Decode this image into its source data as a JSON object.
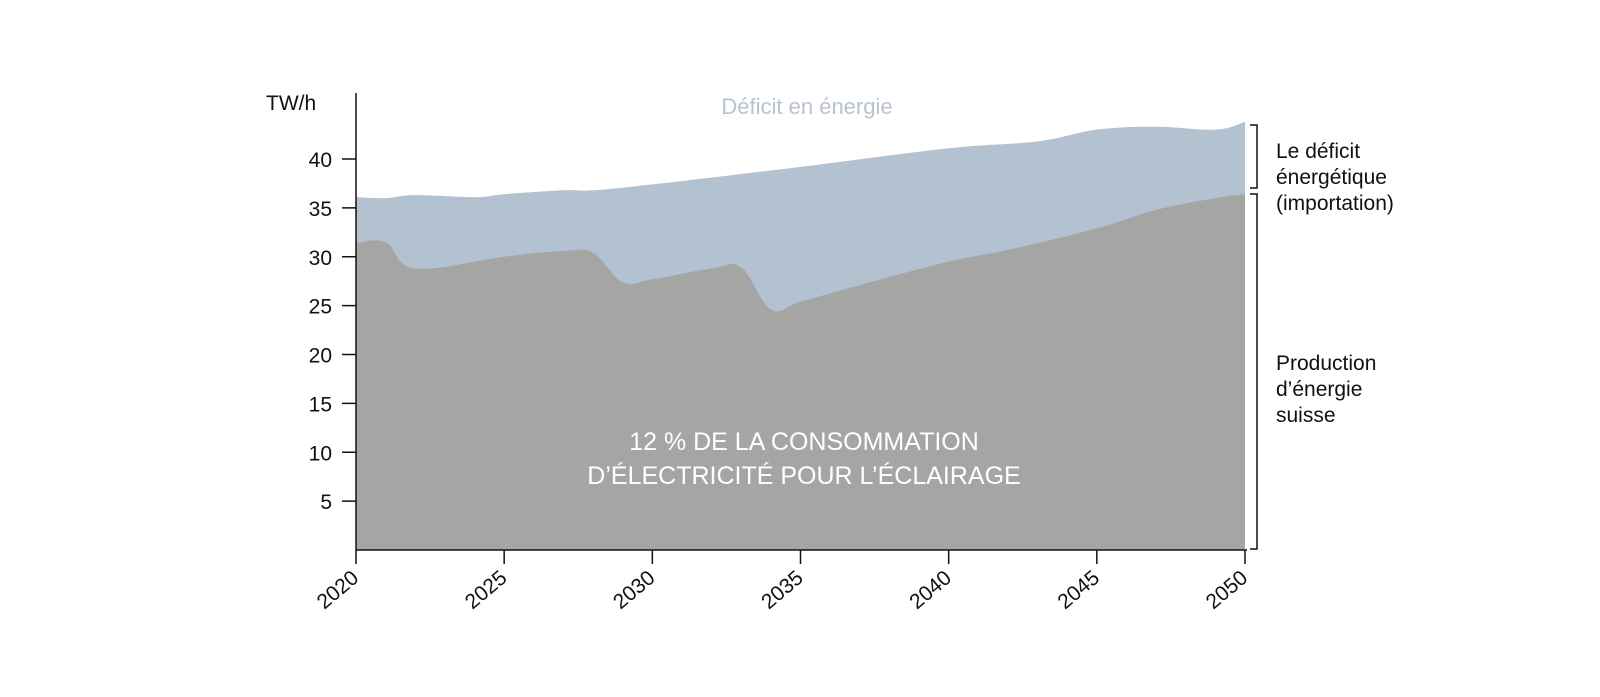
{
  "chart_data": {
    "type": "area",
    "ylabel": "TW/h",
    "xlim": [
      2020,
      2050
    ],
    "ylim": [
      0,
      45
    ],
    "x_ticks": [
      "2020",
      "2025",
      "2030",
      "2035",
      "2040",
      "2045",
      "2050"
    ],
    "y_ticks": [
      "5",
      "10",
      "15",
      "20",
      "25",
      "30",
      "35",
      "40"
    ],
    "grid": false,
    "colors": {
      "deficit": "#b3c2d1",
      "production": "#a5a5a3",
      "deficit_label": "#b8c3d0"
    },
    "series": [
      {
        "name": "Déficit en énergie",
        "label": "Déficit en énergie",
        "x": [
          2020,
          2021,
          2022,
          2024,
          2025,
          2027,
          2028,
          2030,
          2035,
          2040,
          2043,
          2045,
          2047,
          2049,
          2050
        ],
        "values": [
          36.1,
          36.0,
          36.3,
          36.1,
          36.4,
          36.8,
          36.8,
          37.4,
          39.2,
          41.1,
          41.8,
          43.0,
          43.3,
          43.0,
          43.8
        ]
      },
      {
        "name": "Production d’énergie suisse",
        "x": [
          2020,
          2021,
          2022,
          2025,
          2027,
          2028,
          2029,
          2030,
          2032,
          2033,
          2034,
          2035,
          2037,
          2040,
          2042,
          2045,
          2047,
          2049,
          2050
        ],
        "values": [
          31.4,
          31.5,
          28.8,
          30.0,
          30.6,
          30.4,
          27.4,
          27.7,
          28.8,
          28.9,
          24.6,
          25.4,
          27.1,
          29.5,
          30.7,
          32.9,
          34.8,
          36.0,
          36.4
        ]
      }
    ],
    "annotations": {
      "center": [
        "12 % DE LA CONSOMMATION",
        "D’ÉLECTRICITÉ POUR L’ÉCLAIRAGE"
      ],
      "bracket_deficit": [
        "Le déficit",
        "énergétique",
        "(importation)"
      ],
      "bracket_production": [
        "Production",
        "d’énergie",
        "suisse"
      ]
    }
  }
}
